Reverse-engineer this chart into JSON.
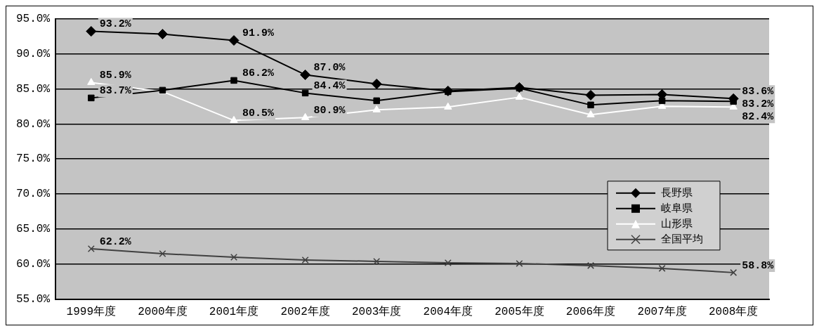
{
  "chart_data": {
    "type": "line",
    "categories": [
      "1999年度",
      "2000年度",
      "2001年度",
      "2002年度",
      "2003年度",
      "2004年度",
      "2005年度",
      "2006年度",
      "2007年度",
      "2008年度"
    ],
    "series": [
      {
        "name": "長野県",
        "color": "#000000",
        "marker": "diamond",
        "values": [
          93.2,
          92.8,
          91.9,
          87.0,
          85.7,
          84.7,
          85.2,
          84.1,
          84.2,
          83.6
        ],
        "value_labels": [
          "93.2%",
          null,
          "91.9%",
          "87.0%",
          null,
          null,
          null,
          null,
          null,
          "83.6%"
        ]
      },
      {
        "name": "岐阜県",
        "color": "#000000",
        "marker": "square",
        "values": [
          83.7,
          84.8,
          86.2,
          84.4,
          83.3,
          84.6,
          85.1,
          82.7,
          83.3,
          83.2
        ],
        "value_labels": [
          "83.7%",
          null,
          "86.2%",
          "84.4%",
          null,
          null,
          null,
          null,
          null,
          "83.2%"
        ]
      },
      {
        "name": "山形県",
        "color": "#ffffff",
        "marker": "triangle",
        "values": [
          85.9,
          84.6,
          80.5,
          80.9,
          82.0,
          82.4,
          83.8,
          81.3,
          82.5,
          82.4
        ],
        "value_labels": [
          "85.9%",
          null,
          "80.5%",
          "80.9%",
          null,
          null,
          null,
          null,
          null,
          "82.4%"
        ]
      },
      {
        "name": "全国平均",
        "color": "#404040",
        "marker": "cross",
        "values": [
          62.2,
          61.5,
          61.0,
          60.6,
          60.4,
          60.2,
          60.1,
          59.8,
          59.4,
          58.8
        ],
        "value_labels": [
          "62.2%",
          null,
          null,
          null,
          null,
          null,
          null,
          null,
          null,
          "58.8%"
        ]
      }
    ],
    "ylim": [
      55,
      95
    ],
    "yticks": [
      {
        "value": 55,
        "label": "55.0%"
      },
      {
        "value": 60,
        "label": "60.0%"
      },
      {
        "value": 65,
        "label": "65.0%"
      },
      {
        "value": 70,
        "label": "70.0%"
      },
      {
        "value": 75,
        "label": "75.0%"
      },
      {
        "value": 80,
        "label": "80.0%"
      },
      {
        "value": 85,
        "label": "85.0%"
      },
      {
        "value": 90,
        "label": "90.0%"
      },
      {
        "value": 95,
        "label": "95.0%"
      }
    ],
    "grid": "y",
    "legend": "bottom right"
  }
}
